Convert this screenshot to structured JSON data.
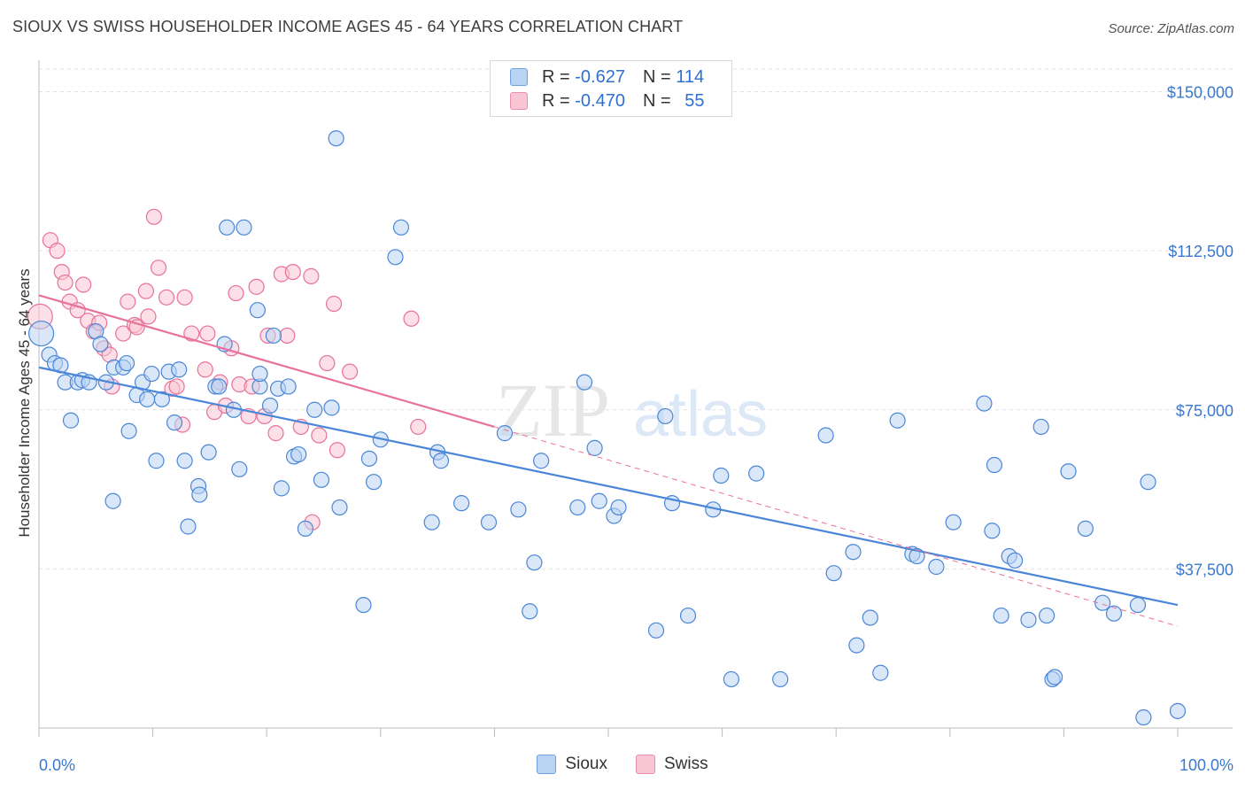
{
  "title": "SIOUX VS SWISS HOUSEHOLDER INCOME AGES 45 - 64 YEARS CORRELATION CHART",
  "source": "Source: ZipAtlas.com",
  "watermark": {
    "zip": "ZIP",
    "atlas": "atlas"
  },
  "legend_top": [
    {
      "r_label": "R =",
      "r_value": "-0.627",
      "n_label": "N =",
      "n_value": "114"
    },
    {
      "r_label": "R =",
      "r_value": "-0.470",
      "n_label": "N =",
      "n_value": "55"
    }
  ],
  "legend_bottom": [
    "Sioux",
    "Swiss"
  ],
  "colors": {
    "sioux": "#4a86d8",
    "swiss": "#e8729a",
    "sioux_fill": "#b9d3f3",
    "swiss_fill": "#f9c4d4",
    "axis_text": "#3a78cf"
  },
  "chart_data": {
    "type": "scatter",
    "xlabel": "",
    "ylabel": "Householder Income Ages 45 - 64 years",
    "xlim": [
      0,
      100
    ],
    "ylim": [
      0,
      157000
    ],
    "x_tick_labels": [
      "0.0%",
      "100.0%"
    ],
    "y_ticks": [
      37500,
      75000,
      112500,
      150000
    ],
    "y_tick_labels": [
      "$37,500",
      "$75,000",
      "$112,500",
      "$150,000"
    ],
    "grid": true,
    "legend_position": "top-center",
    "series": [
      {
        "name": "Sioux",
        "trend": {
          "x": [
            0,
            100
          ],
          "y": [
            85000,
            29000
          ]
        },
        "points": [
          [
            0.2,
            93000
          ],
          [
            0.9,
            88000
          ],
          [
            1.4,
            86000
          ],
          [
            1.9,
            85500
          ],
          [
            2.3,
            81500
          ],
          [
            2.8,
            72500
          ],
          [
            3.4,
            81500
          ],
          [
            3.8,
            82000
          ],
          [
            4.4,
            81500
          ],
          [
            5.0,
            93500
          ],
          [
            5.4,
            90500
          ],
          [
            5.9,
            81500
          ],
          [
            6.6,
            85000
          ],
          [
            6.5,
            53500
          ],
          [
            7.4,
            85000
          ],
          [
            7.7,
            86000
          ],
          [
            7.9,
            70000
          ],
          [
            8.6,
            78500
          ],
          [
            9.1,
            81500
          ],
          [
            9.5,
            77500
          ],
          [
            9.9,
            83500
          ],
          [
            10.3,
            63000
          ],
          [
            10.8,
            77500
          ],
          [
            11.4,
            84000
          ],
          [
            11.9,
            72000
          ],
          [
            12.3,
            84500
          ],
          [
            12.8,
            63000
          ],
          [
            13.1,
            47500
          ],
          [
            14.0,
            57000
          ],
          [
            14.1,
            55000
          ],
          [
            14.9,
            65000
          ],
          [
            15.5,
            80500
          ],
          [
            15.8,
            80500
          ],
          [
            16.3,
            90500
          ],
          [
            16.5,
            118000
          ],
          [
            17.1,
            75000
          ],
          [
            17.6,
            61000
          ],
          [
            18.0,
            118000
          ],
          [
            19.2,
            98500
          ],
          [
            19.4,
            80500
          ],
          [
            19.4,
            83500
          ],
          [
            20.3,
            76000
          ],
          [
            20.6,
            92500
          ],
          [
            21.0,
            80000
          ],
          [
            21.3,
            56500
          ],
          [
            21.9,
            80500
          ],
          [
            22.4,
            64000
          ],
          [
            22.8,
            64500
          ],
          [
            23.4,
            47000
          ],
          [
            24.2,
            75000
          ],
          [
            24.8,
            58500
          ],
          [
            25.7,
            75500
          ],
          [
            26.4,
            52000
          ],
          [
            26.1,
            139000
          ],
          [
            28.5,
            29000
          ],
          [
            29.0,
            63500
          ],
          [
            29.4,
            58000
          ],
          [
            30.0,
            68000
          ],
          [
            31.3,
            111000
          ],
          [
            31.8,
            118000
          ],
          [
            34.5,
            48500
          ],
          [
            35.0,
            65000
          ],
          [
            35.3,
            63000
          ],
          [
            37.1,
            53000
          ],
          [
            39.5,
            48500
          ],
          [
            40.9,
            69500
          ],
          [
            42.1,
            51500
          ],
          [
            43.1,
            27500
          ],
          [
            43.5,
            39000
          ],
          [
            44.1,
            63000
          ],
          [
            47.3,
            52000
          ],
          [
            47.9,
            81500
          ],
          [
            48.8,
            66000
          ],
          [
            49.2,
            53500
          ],
          [
            50.5,
            50000
          ],
          [
            50.9,
            52000
          ],
          [
            54.2,
            23000
          ],
          [
            55.0,
            73500
          ],
          [
            55.6,
            53000
          ],
          [
            57.0,
            26500
          ],
          [
            59.2,
            51500
          ],
          [
            59.9,
            59500
          ],
          [
            60.8,
            11500
          ],
          [
            63.0,
            60000
          ],
          [
            65.1,
            11500
          ],
          [
            69.1,
            69000
          ],
          [
            69.8,
            36500
          ],
          [
            71.5,
            41500
          ],
          [
            71.8,
            19500
          ],
          [
            73.0,
            26000
          ],
          [
            73.9,
            13000
          ],
          [
            75.4,
            72500
          ],
          [
            76.7,
            41000
          ],
          [
            77.1,
            40500
          ],
          [
            78.8,
            38000
          ],
          [
            80.3,
            48500
          ],
          [
            83.0,
            76500
          ],
          [
            83.7,
            46500
          ],
          [
            83.9,
            62000
          ],
          [
            84.5,
            26500
          ],
          [
            85.2,
            40500
          ],
          [
            85.7,
            39500
          ],
          [
            86.9,
            25500
          ],
          [
            88.0,
            71000
          ],
          [
            88.5,
            26500
          ],
          [
            89.0,
            11500
          ],
          [
            89.2,
            12000
          ],
          [
            90.4,
            60500
          ],
          [
            91.9,
            47000
          ],
          [
            93.4,
            29500
          ],
          [
            94.4,
            27000
          ],
          [
            96.5,
            29000
          ],
          [
            97.4,
            58000
          ],
          [
            97.0,
            2500
          ],
          [
            100.0,
            4000
          ]
        ]
      },
      {
        "name": "Swiss",
        "trend": {
          "x": [
            0,
            40
          ],
          "y": [
            102000,
            71000
          ]
        },
        "trend_dashed": {
          "x": [
            40,
            100
          ],
          "y": [
            71000,
            24000
          ]
        },
        "points": [
          [
            0.1,
            97000
          ],
          [
            1.0,
            115000
          ],
          [
            1.6,
            112500
          ],
          [
            2.0,
            107500
          ],
          [
            2.3,
            105000
          ],
          [
            2.7,
            100500
          ],
          [
            3.4,
            98500
          ],
          [
            3.9,
            104500
          ],
          [
            4.3,
            96000
          ],
          [
            4.8,
            93500
          ],
          [
            5.3,
            95500
          ],
          [
            5.7,
            89500
          ],
          [
            6.2,
            88000
          ],
          [
            6.4,
            80500
          ],
          [
            7.4,
            93000
          ],
          [
            7.8,
            100500
          ],
          [
            8.4,
            95000
          ],
          [
            8.6,
            94500
          ],
          [
            9.4,
            103000
          ],
          [
            9.6,
            97000
          ],
          [
            10.1,
            120500
          ],
          [
            10.5,
            108500
          ],
          [
            11.2,
            101500
          ],
          [
            11.7,
            80000
          ],
          [
            12.1,
            80500
          ],
          [
            12.6,
            71500
          ],
          [
            12.8,
            101500
          ],
          [
            13.4,
            93000
          ],
          [
            14.6,
            84500
          ],
          [
            14.8,
            93000
          ],
          [
            15.4,
            74500
          ],
          [
            15.9,
            81500
          ],
          [
            16.4,
            76000
          ],
          [
            16.9,
            89500
          ],
          [
            17.3,
            102500
          ],
          [
            17.6,
            81000
          ],
          [
            18.4,
            73500
          ],
          [
            18.7,
            80500
          ],
          [
            19.1,
            104000
          ],
          [
            19.8,
            73500
          ],
          [
            20.1,
            92500
          ],
          [
            20.8,
            69500
          ],
          [
            21.3,
            107000
          ],
          [
            21.8,
            92500
          ],
          [
            22.3,
            107500
          ],
          [
            23.0,
            71000
          ],
          [
            23.9,
            106500
          ],
          [
            24.6,
            69000
          ],
          [
            25.3,
            86000
          ],
          [
            25.9,
            100000
          ],
          [
            26.2,
            65500
          ],
          [
            27.3,
            84000
          ],
          [
            32.7,
            96500
          ],
          [
            33.3,
            71000
          ],
          [
            24.0,
            48500
          ]
        ]
      }
    ]
  }
}
